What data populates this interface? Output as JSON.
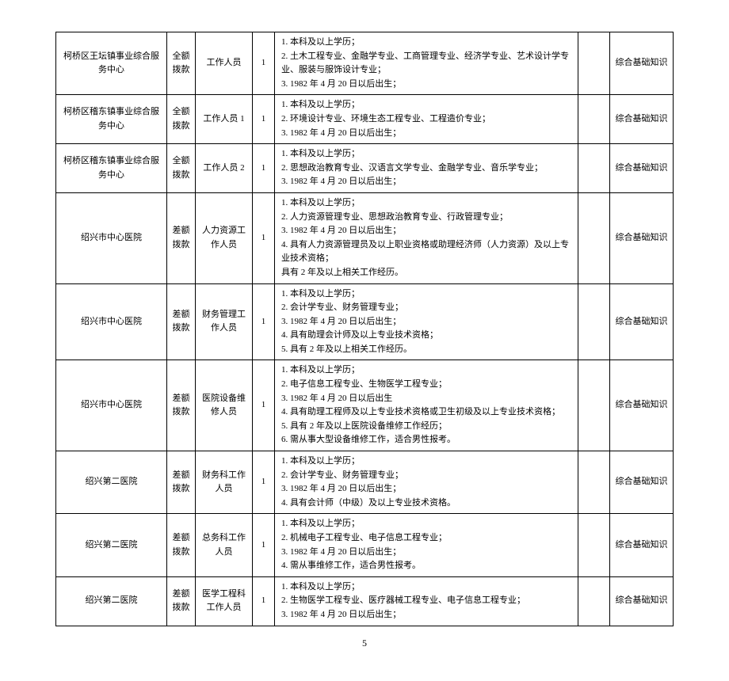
{
  "page_number": "5",
  "columns": [
    "org",
    "fund",
    "position",
    "count",
    "requirements",
    "empty",
    "exam"
  ],
  "rows": [
    {
      "org": "柯桥区王坛镇事业综合服务中心",
      "fund": "全额拨款",
      "position": "工作人员",
      "count": "1",
      "requirements": "1. 本科及以上学历；\n2. 土木工程专业、金融学专业、工商管理专业、经济学专业、艺术设计学专业、服装与服饰设计专业；\n3. 1982 年 4 月 20 日以后出生；",
      "empty": "",
      "exam": "综合基础知识"
    },
    {
      "org": "柯桥区稽东镇事业综合服务中心",
      "fund": "全额拨款",
      "position": "工作人员 1",
      "count": "1",
      "requirements": "1. 本科及以上学历；\n2. 环境设计专业、环境生态工程专业、工程造价专业；\n3. 1982 年 4 月 20 日以后出生；",
      "empty": "",
      "exam": "综合基础知识"
    },
    {
      "org": "柯桥区稽东镇事业综合服务中心",
      "fund": "全额拨款",
      "position": "工作人员 2",
      "count": "1",
      "requirements": "1. 本科及以上学历；\n2. 思想政治教育专业、汉语言文学专业、金融学专业、音乐学专业；\n3. 1982 年 4 月 20 日以后出生；",
      "empty": "",
      "exam": "综合基础知识"
    },
    {
      "org": "绍兴市中心医院",
      "fund": "差额拨款",
      "position": "人力资源工作人员",
      "count": "1",
      "requirements": "1. 本科及以上学历；\n2. 人力资源管理专业、思想政治教育专业、行政管理专业；\n3. 1982 年 4 月 20 日以后出生；\n4. 具有人力资源管理员及以上职业资格或助理经济师（人力资源）及以上专业技术资格；\n具有 2 年及以上相关工作经历。",
      "empty": "",
      "exam": "综合基础知识"
    },
    {
      "org": "绍兴市中心医院",
      "fund": "差额拨款",
      "position": "财务管理工作人员",
      "count": "1",
      "requirements": "1. 本科及以上学历；\n2. 会计学专业、财务管理专业；\n3. 1982 年 4 月 20 日以后出生；\n4. 具有助理会计师及以上专业技术资格；\n5. 具有 2 年及以上相关工作经历。",
      "empty": "",
      "exam": "综合基础知识"
    },
    {
      "org": "绍兴市中心医院",
      "fund": "差额拨款",
      "position": "医院设备维修人员",
      "count": "1",
      "requirements": "1. 本科及以上学历；\n2. 电子信息工程专业、生物医学工程专业；\n3. 1982 年 4 月 20 日以后出生\n4. 具有助理工程师及以上专业技术资格或卫生初级及以上专业技术资格；\n5. 具有 2 年及以上医院设备维修工作经历；\n6. 需从事大型设备维修工作，适合男性报考。",
      "empty": "",
      "exam": "综合基础知识"
    },
    {
      "org": "绍兴第二医院",
      "fund": "差额拨款",
      "position": "财务科工作人员",
      "count": "1",
      "requirements": "1. 本科及以上学历；\n2. 会计学专业、财务管理专业；\n3. 1982 年 4 月 20 日以后出生；\n4. 具有会计师（中级）及以上专业技术资格。",
      "empty": "",
      "exam": "综合基础知识"
    },
    {
      "org": "绍兴第二医院",
      "fund": "差额拨款",
      "position": "总务科工作人员",
      "count": "1",
      "requirements": "1. 本科及以上学历；\n2. 机械电子工程专业、电子信息工程专业；\n3. 1982 年 4 月 20 日以后出生；\n4. 需从事维修工作，适合男性报考。",
      "empty": "",
      "exam": "综合基础知识"
    },
    {
      "org": "绍兴第二医院",
      "fund": "差额拨款",
      "position": "医学工程科工作人员",
      "count": "1",
      "requirements": "1. 本科及以上学历；\n2. 生物医学工程专业、医疗器械工程专业、电子信息工程专业；\n3. 1982 年 4 月 20 日以后出生；",
      "empty": "",
      "exam": "综合基础知识"
    }
  ]
}
